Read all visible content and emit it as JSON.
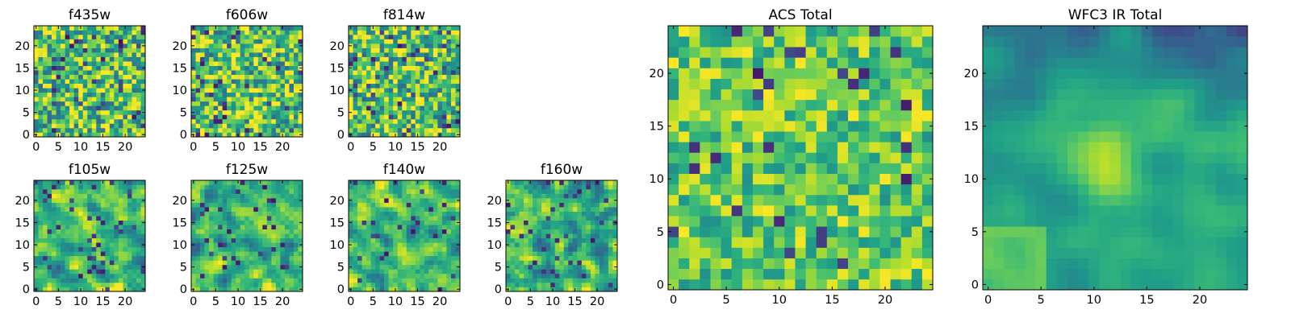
{
  "figure": {
    "description_free": true
  },
  "chart_data": [
    {
      "type": "heatmap",
      "title": "f435w",
      "grid_size": 25,
      "seed": 435,
      "style": "noise",
      "xticks": [
        "0",
        "5",
        "10",
        "15",
        "20"
      ],
      "yticks": [
        "0",
        "5",
        "10",
        "15",
        "20"
      ],
      "xlim": [
        0,
        25
      ],
      "ylim": [
        0,
        25
      ]
    },
    {
      "type": "heatmap",
      "title": "f606w",
      "grid_size": 25,
      "seed": 606,
      "style": "noise",
      "xticks": [
        "0",
        "5",
        "10",
        "15",
        "20"
      ],
      "yticks": [
        "0",
        "5",
        "10",
        "15",
        "20"
      ],
      "xlim": [
        0,
        25
      ],
      "ylim": [
        0,
        25
      ]
    },
    {
      "type": "heatmap",
      "title": "f814w",
      "grid_size": 25,
      "seed": 814,
      "style": "noise",
      "xticks": [
        "0",
        "5",
        "10",
        "15",
        "20"
      ],
      "yticks": [
        "0",
        "5",
        "10",
        "15",
        "20"
      ],
      "xlim": [
        0,
        25
      ],
      "ylim": [
        0,
        25
      ]
    },
    {
      "type": "heatmap",
      "title": "f105w",
      "grid_size": 25,
      "seed": 105,
      "style": "smooth",
      "xticks": [
        "0",
        "5",
        "10",
        "15",
        "20"
      ],
      "yticks": [
        "0",
        "5",
        "10",
        "15",
        "20"
      ],
      "xlim": [
        0,
        25
      ],
      "ylim": [
        0,
        25
      ]
    },
    {
      "type": "heatmap",
      "title": "f125w",
      "grid_size": 25,
      "seed": 125,
      "style": "smooth",
      "xticks": [
        "0",
        "5",
        "10",
        "15",
        "20"
      ],
      "yticks": [
        "0",
        "5",
        "10",
        "15",
        "20"
      ],
      "xlim": [
        0,
        25
      ],
      "ylim": [
        0,
        25
      ]
    },
    {
      "type": "heatmap",
      "title": "f140w",
      "grid_size": 25,
      "seed": 140,
      "style": "smooth",
      "xticks": [
        "0",
        "5",
        "10",
        "15",
        "20"
      ],
      "yticks": [
        "0",
        "5",
        "10",
        "15",
        "20"
      ],
      "xlim": [
        0,
        25
      ],
      "ylim": [
        0,
        25
      ]
    },
    {
      "type": "heatmap",
      "title": "f160w",
      "grid_size": 25,
      "seed": 160,
      "style": "smooth",
      "xticks": [
        "0",
        "5",
        "10",
        "15",
        "20"
      ],
      "yticks": [
        "0",
        "5",
        "10",
        "15",
        "20"
      ],
      "xlim": [
        0,
        25
      ],
      "ylim": [
        0,
        25
      ]
    },
    {
      "type": "heatmap",
      "title": "ACS Total",
      "grid_size": 25,
      "seed": 777,
      "style": "acs",
      "xticks": [
        "0",
        "5",
        "10",
        "15",
        "20"
      ],
      "yticks": [
        "0",
        "5",
        "10",
        "15",
        "20"
      ],
      "xlim": [
        0,
        25
      ],
      "ylim": [
        0,
        25
      ]
    },
    {
      "type": "heatmap",
      "title": "WFC3 IR Total",
      "grid_size": 25,
      "seed": 333,
      "style": "ir",
      "xticks": [
        "0",
        "5",
        "10",
        "15",
        "20"
      ],
      "yticks": [
        "0",
        "5",
        "10",
        "15",
        "20"
      ],
      "xlim": [
        0,
        25
      ],
      "ylim": [
        0,
        25
      ]
    }
  ],
  "colormap": "viridis"
}
